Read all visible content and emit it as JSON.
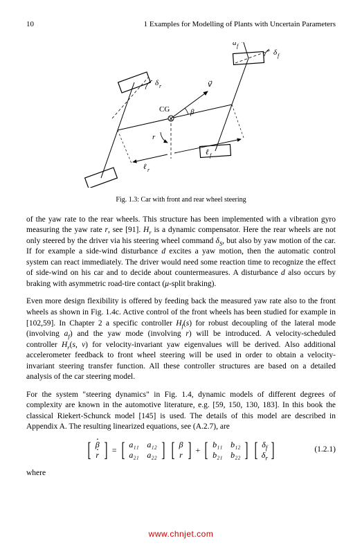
{
  "header": {
    "page_number": "10",
    "chapter_title": "1  Examples for Modelling of Plants with Uncertain Parameters"
  },
  "figure": {
    "caption": "Fig. 1.3: Car with front and rear wheel steering",
    "labels": {
      "af": "a",
      "af_sub": "f",
      "deltaf": "δ",
      "deltaf_sub": "f",
      "deltar": "δ",
      "deltar_sub": "r",
      "v": "v",
      "beta": "β",
      "cg": "CG",
      "r": "r",
      "lf": "ℓ",
      "lf_sub": "f",
      "lr": "ℓ",
      "lr_sub": "r"
    },
    "colors": {
      "stroke": "#000000",
      "fill": "#ffffff"
    }
  },
  "paragraphs": {
    "p1_html": "of the yaw rate to the rear wheels. This structure has been implemented with a vibration gyro measuring the yaw rate <span class=\"italic\">r</span>, see [91]. <span class=\"italic\">H<sub>r</sub></span> is a dynamic compensator. Here the rear wheels are not only steered by the driver via his steering wheel command <span class=\"italic\">δ<sub>S</sub></span>, but also by yaw motion of the car. If for example a side-wind disturbance <span class=\"italic\">d</span> excites a yaw motion, then the automatic control system can react immediately. The driver would need some reaction time to recognize the effect of side-wind on his car and to decide about countermeasures. A disturbance <span class=\"italic\">d</span> also occurs by braking with asymmetric road-tire contact (<span class=\"italic\">μ</span>-split braking).",
    "p2_html": "Even more design flexibility is offered by feeding back the measured yaw rate also to the front wheels as shown in Fig. 1.4c. Active control of the front wheels has been studied for example in [102,59]. In Chapter 2 a specific controller <span class=\"italic\">H<sub>f</sub></span>(<span class=\"italic\">s</span>) for robust decoupling of the lateral mode (involving <span class=\"italic\">a<sub>f</sub></span>) and the yaw mode (involving <span class=\"italic\">r</span>) will be introduced. A velocity-scheduled controller <span class=\"italic\">H<sub>r</sub></span>(<span class=\"italic\">s, v</span>) for velocity-invariant yaw eigenvalues will be derived. Also additional accelerometer feedback to front wheel steering will be used in order to obtain a velocity-invariant steering transfer function. All these controller structures are based on a detailed analysis of the car steering model.",
    "p3_html": "For the system \"steering dynamics\" in Fig. 1.4, dynamic models of different degrees of complexity are known in the automotive literature, e.g. [59, 150, 130, 183]. In this book the classical Riekert-Schunck model [145] is used. The details of this model are described in Appendix A. The resulting linearized equations, see (A.2.7), are",
    "where": "where"
  },
  "equation": {
    "number": "(1.2.1)",
    "state_vec": {
      "r1": "β",
      "r2": "r"
    },
    "a_matrix": {
      "a11": "a₁₁",
      "a12": "a₁₂",
      "a21": "a₂₁",
      "a22": "a₂₂"
    },
    "state_vec2": {
      "r1": "β",
      "r2": "r"
    },
    "b_matrix": {
      "b11": "b₁₁",
      "b12": "b₁₂",
      "b21": "b₂₁",
      "b22": "b₂₂"
    },
    "input_vec": {
      "r1": "δ",
      "r1_sub": "f",
      "r2": "δ",
      "r2_sub": "r"
    },
    "eq": "=",
    "plus": "+"
  },
  "watermark": "www.chnjet.com"
}
